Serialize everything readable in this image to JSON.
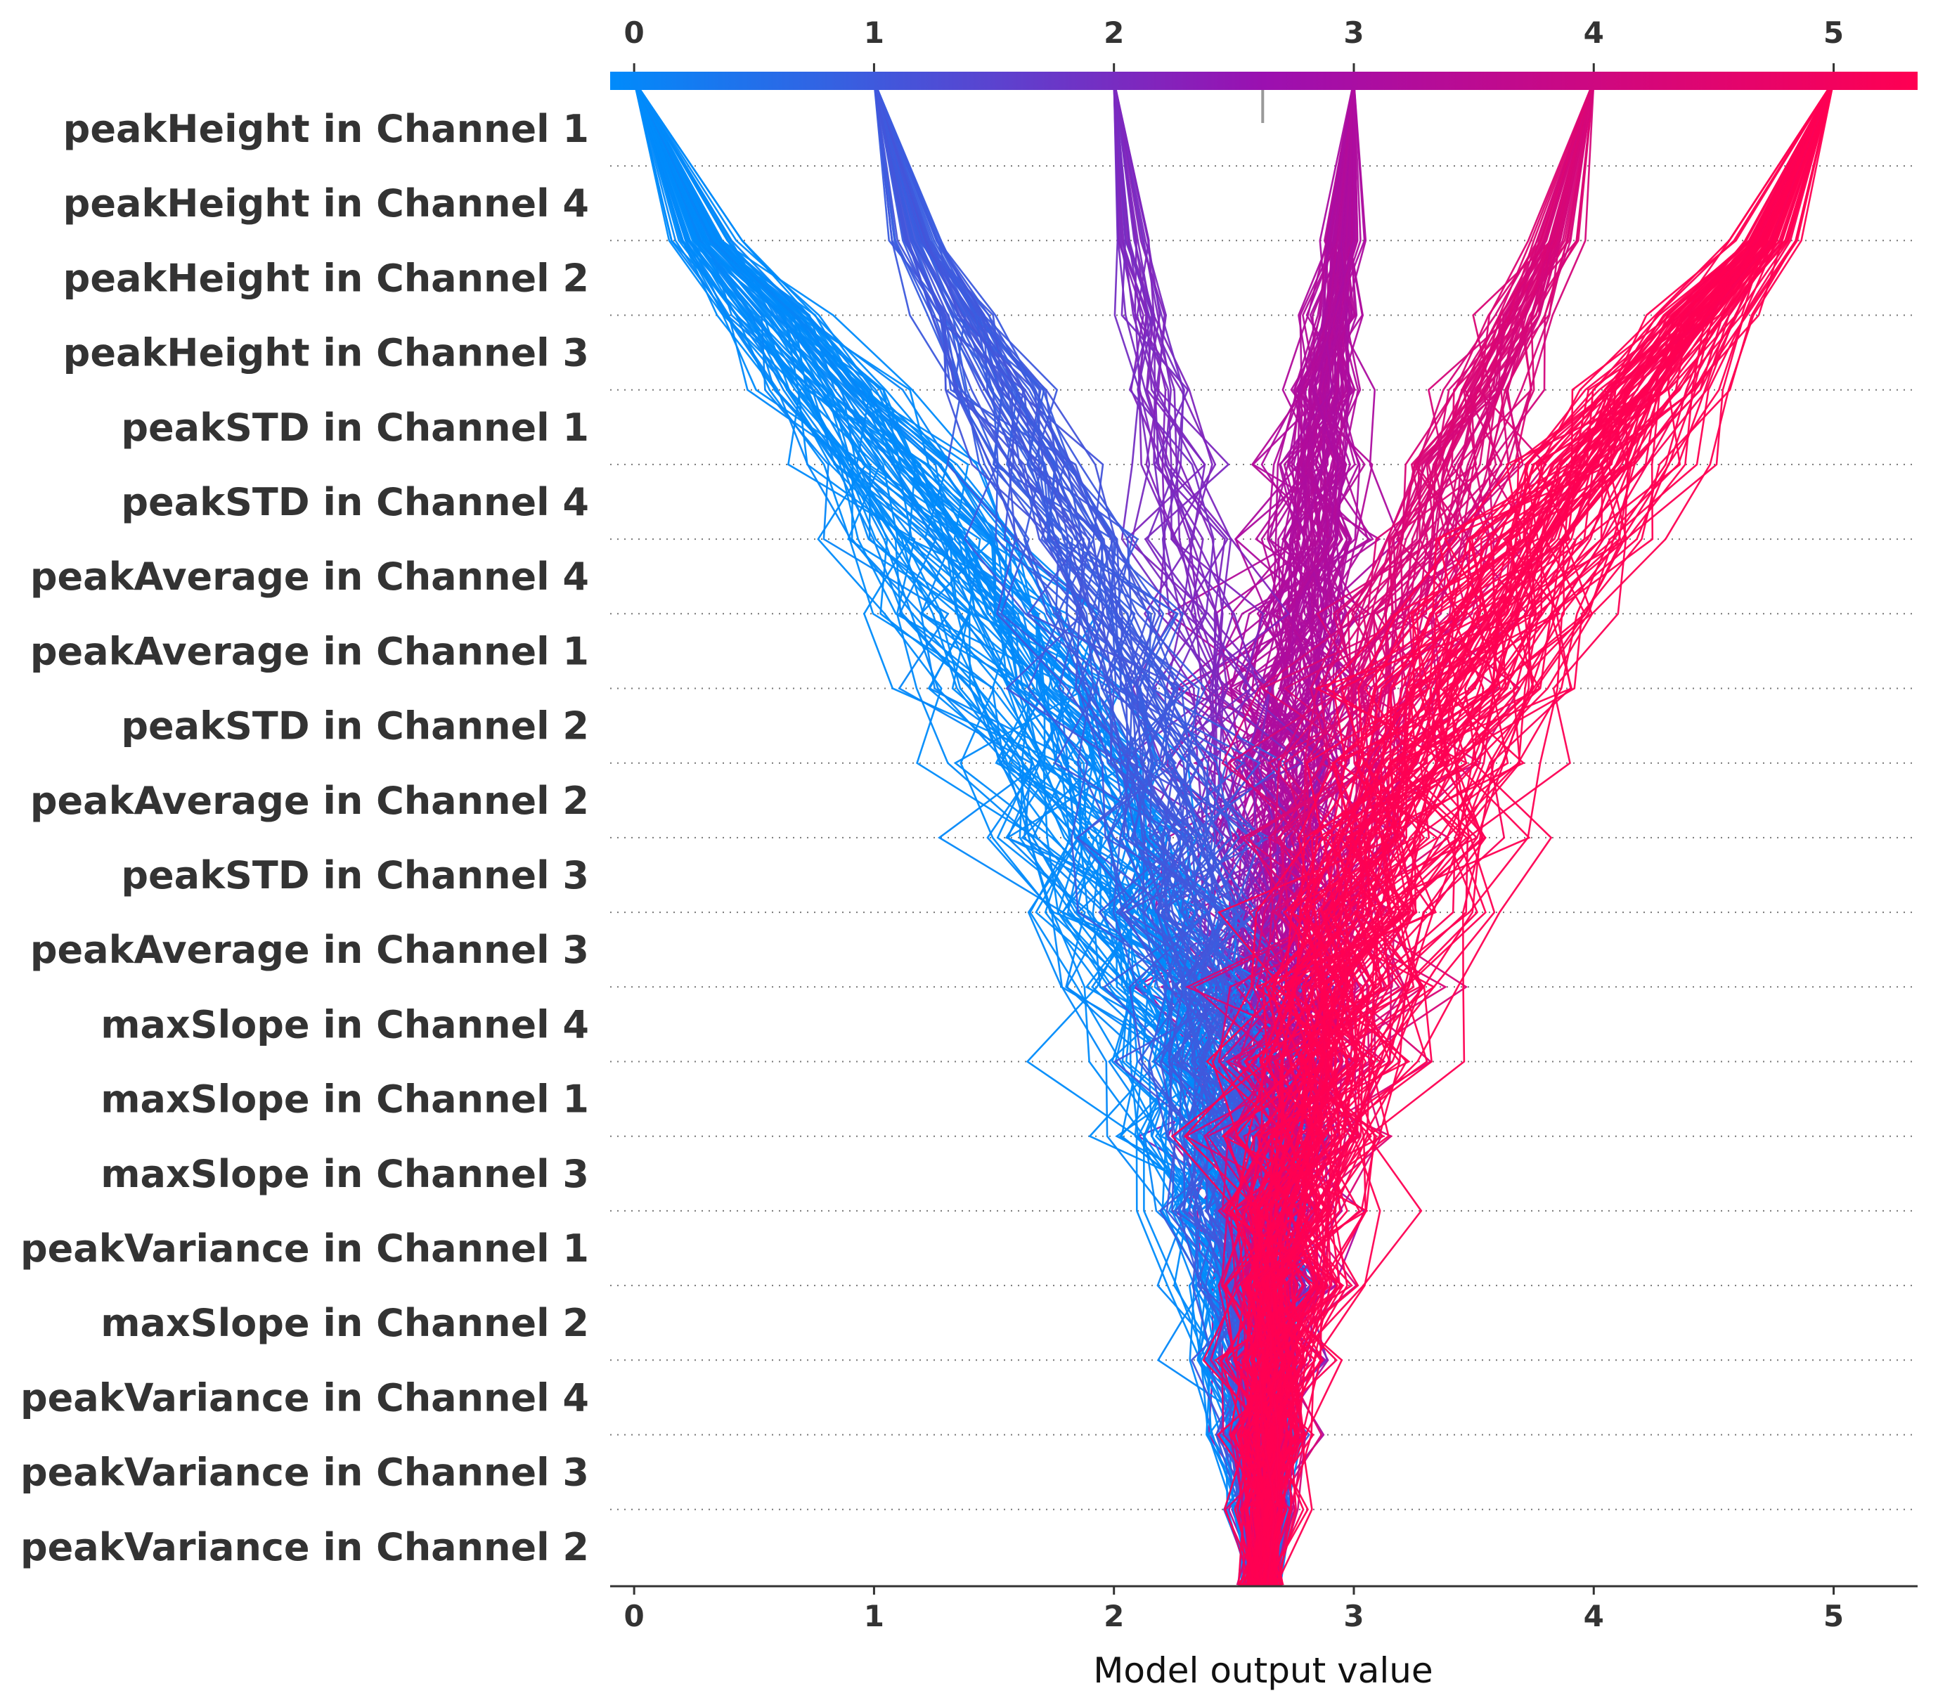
{
  "chart_data": {
    "type": "line",
    "subtype": "shap-decision-plot",
    "title": "",
    "xlabel": "Model output value",
    "ylabel": "",
    "xlim": [
      -0.1,
      5.35
    ],
    "xticks": [
      0,
      1,
      2,
      3,
      4,
      5
    ],
    "base_value": 2.62,
    "features": [
      "peakHeight in Channel 1",
      "peakHeight in Channel 4",
      "peakHeight in Channel 2",
      "peakHeight in Channel 3",
      "peakSTD in Channel 1",
      "peakSTD in Channel 4",
      "peakAverage in Channel 4",
      "peakAverage in Channel 1",
      "peakSTD in Channel 2",
      "peakAverage in Channel 2",
      "peakSTD in Channel 3",
      "peakAverage in Channel 3",
      "maxSlope in Channel 4",
      "maxSlope in Channel 1",
      "maxSlope in Channel 3",
      "peakVariance in Channel 1",
      "maxSlope in Channel 2",
      "peakVariance in Channel 4",
      "peakVariance in Channel 3",
      "peakVariance in Channel 2"
    ],
    "color_scale": {
      "low": "#008bfb",
      "mid": "#9b10b0",
      "high": "#ff0052"
    },
    "class_output_groups": [
      {
        "final_output": 0,
        "count": 80,
        "color": "#0a85f5"
      },
      {
        "final_output": 1,
        "count": 60,
        "color": "#2d6ae8"
      },
      {
        "final_output": 2,
        "count": 25,
        "color": "#7a47c8"
      },
      {
        "final_output": 3,
        "count": 90,
        "color": "#a0109e"
      },
      {
        "final_output": 4,
        "count": 55,
        "color": "#e00a78"
      },
      {
        "final_output": 5,
        "count": 95,
        "color": "#ff0a5a"
      }
    ],
    "grid": "dotted horizontal lines between features",
    "legend": "none"
  }
}
